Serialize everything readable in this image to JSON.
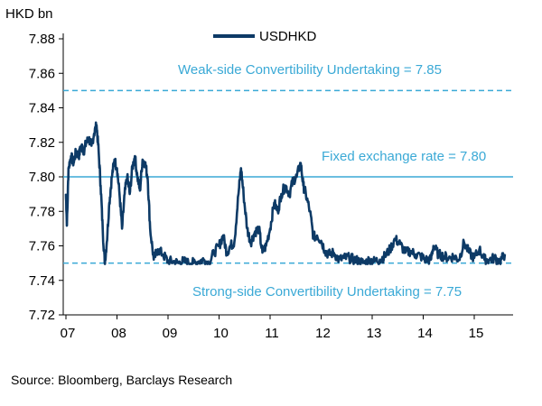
{
  "chart_data": {
    "type": "line",
    "unit_label": "HKD bn",
    "legend": [
      {
        "name": "USDHKD",
        "color": "#0d3a66"
      }
    ],
    "series": [
      {
        "name": "USDHKD",
        "color": "#0d3a66",
        "x": [
          2007.0,
          2007.02,
          2007.05,
          2007.1,
          2007.15,
          2007.2,
          2007.25,
          2007.3,
          2007.35,
          2007.4,
          2007.45,
          2007.5,
          2007.55,
          2007.6,
          2007.64,
          2007.68,
          2007.72,
          2007.76,
          2007.8,
          2007.85,
          2007.9,
          2007.95,
          2008.0,
          2008.05,
          2008.1,
          2008.15,
          2008.2,
          2008.25,
          2008.3,
          2008.35,
          2008.4,
          2008.45,
          2008.5,
          2008.55,
          2008.6,
          2008.65,
          2008.72,
          2008.8,
          2008.9,
          2009.0,
          2009.1,
          2009.2,
          2009.3,
          2009.4,
          2009.5,
          2009.6,
          2009.7,
          2009.8,
          2009.9,
          2010.0,
          2010.08,
          2010.15,
          2010.22,
          2010.3,
          2010.38,
          2010.43,
          2010.48,
          2010.55,
          2010.62,
          2010.7,
          2010.78,
          2010.85,
          2010.92,
          2011.0,
          2011.08,
          2011.15,
          2011.22,
          2011.3,
          2011.38,
          2011.45,
          2011.52,
          2011.6,
          2011.65,
          2011.7,
          2011.78,
          2011.85,
          2011.92,
          2012.0,
          2012.08,
          2012.15,
          2012.25,
          2012.35,
          2012.45,
          2012.55,
          2012.65,
          2012.75,
          2012.85,
          2012.95,
          2013.05,
          2013.15,
          2013.25,
          2013.35,
          2013.45,
          2013.55,
          2013.65,
          2013.75,
          2013.85,
          2013.95,
          2014.05,
          2014.15,
          2014.2,
          2014.3,
          2014.4,
          2014.5,
          2014.6,
          2014.7,
          2014.8,
          2014.9,
          2015.0,
          2015.1,
          2015.2,
          2015.3,
          2015.4,
          2015.5,
          2015.6
        ],
        "y": [
          7.79,
          7.772,
          7.805,
          7.812,
          7.808,
          7.815,
          7.812,
          7.818,
          7.815,
          7.82,
          7.822,
          7.818,
          7.825,
          7.83,
          7.815,
          7.795,
          7.77,
          7.75,
          7.762,
          7.785,
          7.8,
          7.81,
          7.805,
          7.79,
          7.77,
          7.79,
          7.8,
          7.79,
          7.805,
          7.812,
          7.8,
          7.792,
          7.81,
          7.808,
          7.8,
          7.77,
          7.752,
          7.758,
          7.755,
          7.751,
          7.751,
          7.75,
          7.751,
          7.75,
          7.75,
          7.751,
          7.752,
          7.75,
          7.756,
          7.76,
          7.766,
          7.756,
          7.76,
          7.762,
          7.79,
          7.805,
          7.79,
          7.77,
          7.762,
          7.768,
          7.77,
          7.756,
          7.76,
          7.77,
          7.785,
          7.78,
          7.79,
          7.795,
          7.79,
          7.798,
          7.8,
          7.808,
          7.795,
          7.79,
          7.78,
          7.765,
          7.766,
          7.763,
          7.757,
          7.755,
          7.756,
          7.752,
          7.753,
          7.753,
          7.752,
          7.751,
          7.75,
          7.752,
          7.751,
          7.752,
          7.754,
          7.758,
          7.764,
          7.761,
          7.756,
          7.757,
          7.755,
          7.754,
          7.752,
          7.752,
          7.76,
          7.755,
          7.754,
          7.753,
          7.754,
          7.752,
          7.762,
          7.756,
          7.753,
          7.758,
          7.752,
          7.752,
          7.753,
          7.751,
          7.755
        ]
      }
    ],
    "reference_lines": [
      {
        "name": "weak_side",
        "value": 7.85,
        "style": "dashed",
        "color": "#3aa9d6",
        "label": "Weak-side Convertibility Undertaking = 7.85"
      },
      {
        "name": "fixed",
        "value": 7.8,
        "style": "solid",
        "color": "#3aa9d6",
        "label": "Fixed exchange rate = 7.80"
      },
      {
        "name": "strong_side",
        "value": 7.75,
        "style": "dashed",
        "color": "#3aa9d6",
        "label": "Strong-side Convertibility Undertaking = 7.75"
      }
    ],
    "x_ticks": [
      {
        "value": 2007,
        "label": "07"
      },
      {
        "value": 2008,
        "label": "08"
      },
      {
        "value": 2009,
        "label": "09"
      },
      {
        "value": 2010,
        "label": "10"
      },
      {
        "value": 2011,
        "label": "11"
      },
      {
        "value": 2012,
        "label": "12"
      },
      {
        "value": 2013,
        "label": "13"
      },
      {
        "value": 2014,
        "label": "14"
      },
      {
        "value": 2015,
        "label": "15"
      }
    ],
    "y_ticks": [
      {
        "value": 7.72,
        "label": "7.72"
      },
      {
        "value": 7.74,
        "label": "7.74"
      },
      {
        "value": 7.76,
        "label": "7.76"
      },
      {
        "value": 7.78,
        "label": "7.78"
      },
      {
        "value": 7.8,
        "label": "7.80"
      },
      {
        "value": 7.82,
        "label": "7.82"
      },
      {
        "value": 7.84,
        "label": "7.84"
      },
      {
        "value": 7.86,
        "label": "7.86"
      },
      {
        "value": 7.88,
        "label": "7.88"
      }
    ],
    "xlim": [
      2007,
      2015.95
    ],
    "ylim": [
      7.72,
      7.88
    ],
    "grid": false,
    "legend_position": "top-center"
  },
  "source": "Source: Bloomberg, Barclays Research"
}
